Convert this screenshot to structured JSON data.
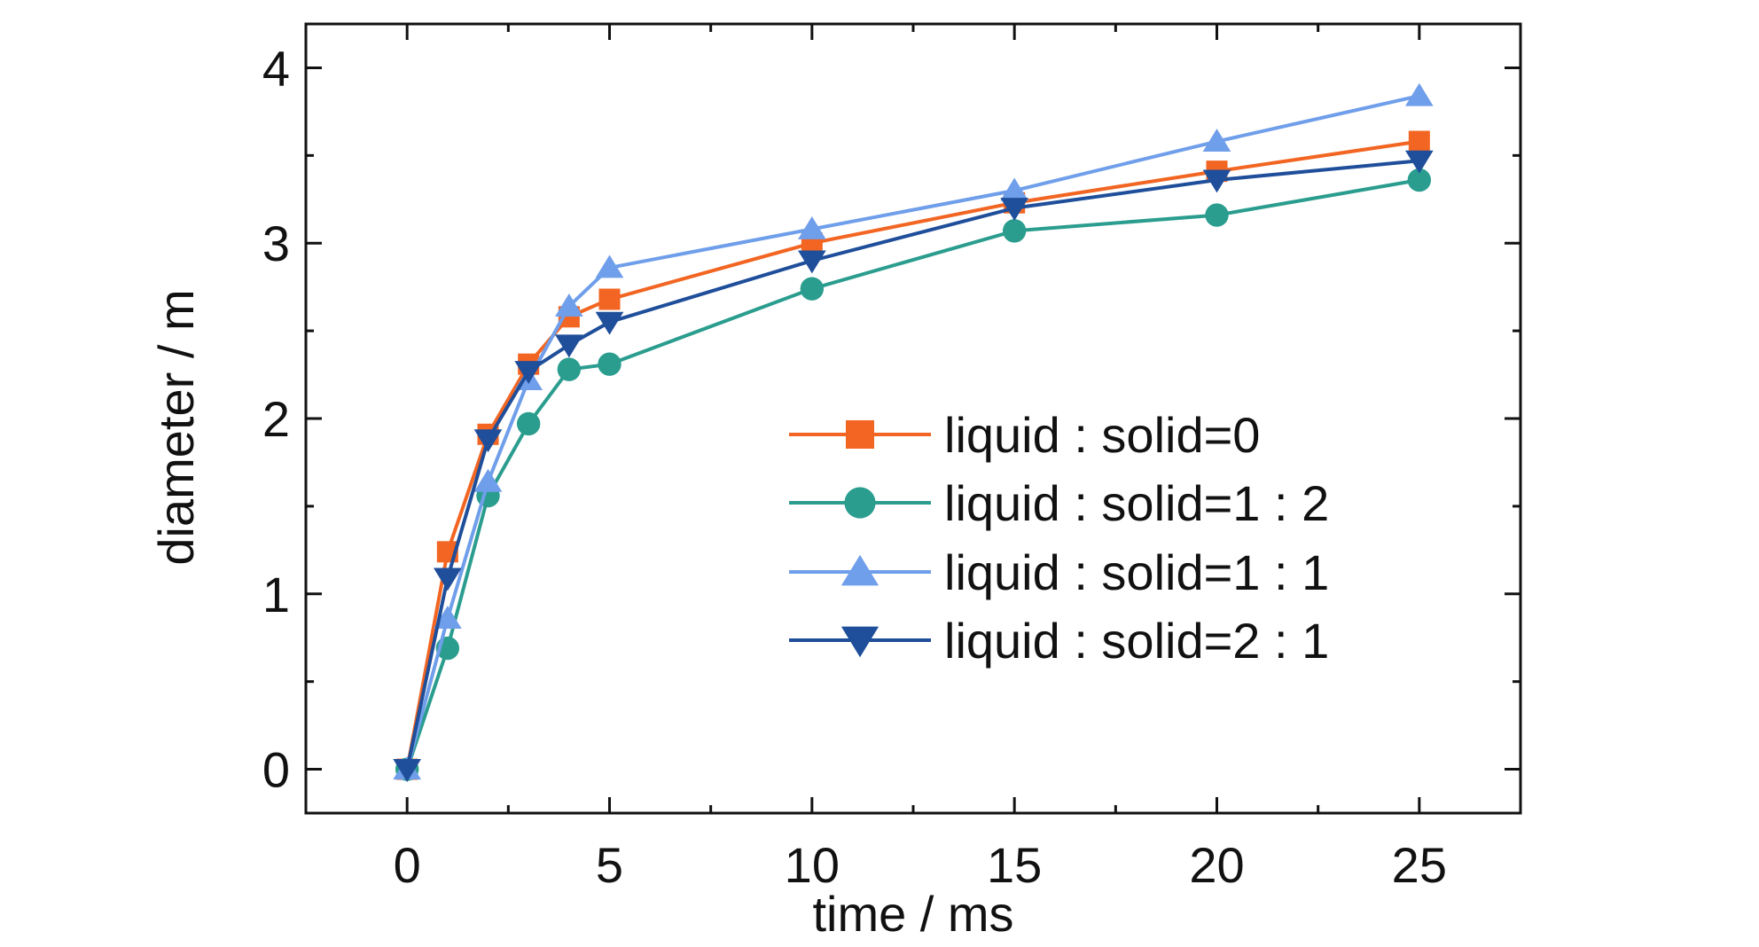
{
  "chart_data": {
    "type": "line",
    "title": "",
    "xlabel": "time / ms",
    "ylabel": "diameter / m",
    "xlim": [
      -2.5,
      27.5
    ],
    "ylim": [
      -0.25,
      4.25
    ],
    "xticks": [
      0,
      5,
      10,
      15,
      20,
      25
    ],
    "xtick_labels": [
      "0",
      "5",
      "10",
      "15",
      "20",
      "25"
    ],
    "yticks": [
      0,
      1,
      2,
      3,
      4
    ],
    "ytick_labels": [
      "0",
      "1",
      "2",
      "3",
      "4"
    ],
    "grid": false,
    "legend_position": "center-right",
    "x": [
      0,
      1,
      2,
      3,
      4,
      5,
      10,
      15,
      20,
      25
    ],
    "series": [
      {
        "name": "liquid : solid=0",
        "color": "#F26522",
        "marker": "square",
        "values": [
          0,
          1.24,
          1.91,
          2.31,
          2.58,
          2.68,
          3.0,
          3.23,
          3.41,
          3.58
        ]
      },
      {
        "name": "liquid : solid=1 : 2",
        "color": "#2A9D8F",
        "marker": "circle",
        "values": [
          0,
          0.69,
          1.56,
          1.97,
          2.28,
          2.31,
          2.74,
          3.07,
          3.16,
          3.36
        ]
      },
      {
        "name": "liquid : solid=1 : 1",
        "color": "#6F9EEA",
        "marker": "triangle-up",
        "values": [
          0,
          0.86,
          1.64,
          2.22,
          2.64,
          2.86,
          3.08,
          3.3,
          3.58,
          3.84
        ]
      },
      {
        "name": "liquid : solid=2 : 1",
        "color": "#1F4E9A",
        "marker": "triangle-down",
        "values": [
          0,
          1.09,
          1.88,
          2.27,
          2.42,
          2.55,
          2.9,
          3.2,
          3.36,
          3.47
        ]
      }
    ]
  }
}
